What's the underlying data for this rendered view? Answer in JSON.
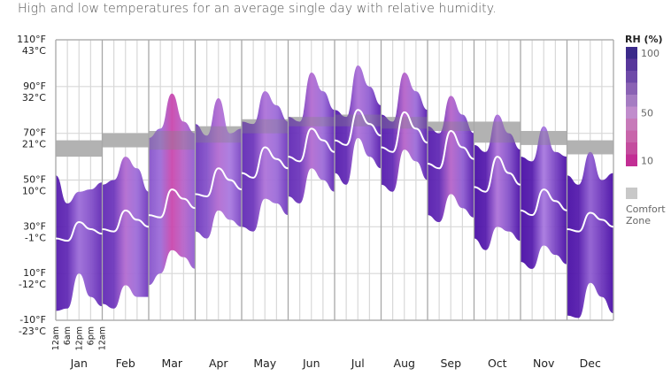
{
  "title": "High and low temperatures for an average single day with relative humidity.",
  "chart_data": {
    "type": "area",
    "title": "High and low temperatures for an average single day with relative humidity.",
    "xlabel": "",
    "ylabel": "",
    "ylim_f": [
      -10,
      110
    ],
    "y_ticks": [
      {
        "f": "110°F",
        "c": "43°C",
        "value": 110
      },
      {
        "f": "90°F",
        "c": "32°C",
        "value": 90
      },
      {
        "f": "70°F",
        "c": "21°C",
        "value": 70
      },
      {
        "f": "50°F",
        "c": "10°C",
        "value": 50
      },
      {
        "f": "30°F",
        "c": "-1°C",
        "value": 30
      },
      {
        "f": "10°F",
        "c": "-12°C",
        "value": 10
      },
      {
        "f": "-10°F",
        "c": "-23°C",
        "value": -10
      }
    ],
    "hour_ticks": [
      "12am",
      "6am",
      "12pm",
      "6pm",
      "12am"
    ],
    "categories": [
      "Jan",
      "Feb",
      "Mar",
      "Apr",
      "May",
      "Jun",
      "Jul",
      "Aug",
      "Sep",
      "Oct",
      "Nov",
      "Dec"
    ],
    "grid": true,
    "series": [
      {
        "name": "High",
        "unit": "°F",
        "values": [
          [
            52,
            40,
            45,
            46,
            49
          ],
          [
            48,
            50,
            60,
            55,
            45
          ],
          [
            68,
            72,
            87,
            75,
            70
          ],
          [
            74,
            69,
            85,
            70,
            72
          ],
          [
            75,
            74,
            88,
            82,
            75
          ],
          [
            77,
            75,
            96,
            88,
            80
          ],
          [
            80,
            77,
            99,
            90,
            82
          ],
          [
            78,
            75,
            96,
            88,
            80
          ],
          [
            73,
            70,
            86,
            78,
            70
          ],
          [
            65,
            62,
            78,
            70,
            63
          ],
          [
            60,
            58,
            73,
            62,
            60
          ],
          [
            52,
            48,
            62,
            50,
            53
          ]
        ]
      },
      {
        "name": "Low",
        "unit": "°F",
        "values": [
          [
            -6,
            -5,
            10,
            0,
            -4
          ],
          [
            -3,
            -5,
            5,
            0,
            0
          ],
          [
            5,
            10,
            20,
            17,
            12
          ],
          [
            28,
            25,
            37,
            33,
            30
          ],
          [
            30,
            28,
            42,
            40,
            35
          ],
          [
            43,
            40,
            55,
            50,
            45
          ],
          [
            53,
            48,
            68,
            60,
            55
          ],
          [
            48,
            45,
            63,
            58,
            50
          ],
          [
            35,
            32,
            44,
            38,
            34
          ],
          [
            25,
            20,
            30,
            28,
            24
          ],
          [
            15,
            12,
            22,
            18,
            14
          ],
          [
            -8,
            -9,
            6,
            0,
            -7
          ]
        ]
      },
      {
        "name": "Average",
        "unit": "°F",
        "values": [
          [
            25,
            24,
            32,
            29,
            27
          ],
          [
            29,
            28,
            37,
            33,
            30
          ],
          [
            35,
            34,
            46,
            42,
            38
          ],
          [
            44,
            43,
            55,
            50,
            46
          ],
          [
            53,
            51,
            64,
            59,
            55
          ],
          [
            60,
            58,
            72,
            67,
            62
          ],
          [
            67,
            65,
            80,
            74,
            69
          ],
          [
            64,
            62,
            79,
            72,
            66
          ],
          [
            57,
            55,
            71,
            64,
            59
          ],
          [
            47,
            45,
            60,
            53,
            48
          ],
          [
            37,
            35,
            46,
            41,
            37
          ],
          [
            29,
            28,
            36,
            33,
            30
          ]
        ]
      },
      {
        "name": "Relative Humidity",
        "unit": "%",
        "values": [
          [
            90,
            85,
            60,
            70,
            85
          ],
          [
            85,
            80,
            45,
            60,
            80
          ],
          [
            70,
            60,
            20,
            40,
            65
          ],
          [
            80,
            70,
            45,
            55,
            75
          ],
          [
            85,
            80,
            50,
            60,
            80
          ],
          [
            85,
            80,
            45,
            60,
            85
          ],
          [
            90,
            85,
            50,
            65,
            90
          ],
          [
            90,
            85,
            40,
            60,
            90
          ],
          [
            90,
            85,
            40,
            65,
            90
          ],
          [
            95,
            90,
            50,
            70,
            95
          ],
          [
            95,
            90,
            55,
            75,
            95
          ],
          [
            95,
            90,
            65,
            80,
            95
          ]
        ]
      }
    ],
    "comfort_zone": {
      "label": "Comfort Zone",
      "unit": "°F",
      "ranges": [
        [
          60,
          67
        ],
        [
          64,
          70
        ],
        [
          63,
          71
        ],
        [
          66,
          73
        ],
        [
          70,
          76
        ],
        [
          73,
          77
        ],
        [
          73,
          78
        ],
        [
          72,
          77
        ],
        [
          71,
          75
        ],
        [
          66,
          75
        ],
        [
          65,
          71
        ],
        [
          61,
          67
        ]
      ]
    },
    "legend": {
      "title": "RH (%)",
      "position": "right",
      "labels": [
        "100",
        "50",
        "10"
      ],
      "scale_colors": [
        "#3b2a8a",
        "#58379b",
        "#6e4aa8",
        "#8a62b4",
        "#a57cc2",
        "#c08ccc",
        "#c77ab9",
        "#c865aa",
        "#c44d9e",
        "#c22e94"
      ],
      "comfort_zone_color": "#c8c8c8",
      "comfort_label_lines": [
        "Comfort",
        "Zone"
      ]
    },
    "colors": {
      "humid_high": "#4a0fa6",
      "humid_mid": "#a97ae0",
      "humid_low": "#d43a9e",
      "average_line": "#ffffff",
      "grid_major": "#a8a8a8",
      "grid_minor": "#d8d8d8"
    }
  }
}
